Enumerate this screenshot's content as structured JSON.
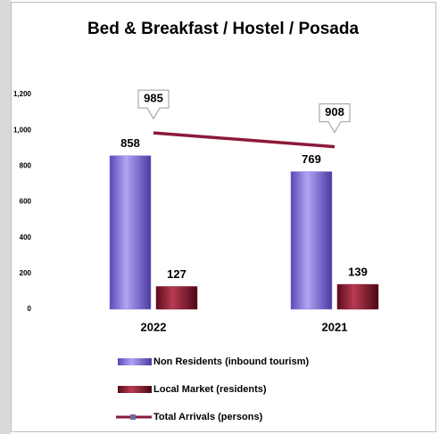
{
  "chart_data": {
    "type": "bar",
    "title": "Bed & Breakfast / Hostel / Posada",
    "categories": [
      "2022",
      "2021"
    ],
    "series": [
      {
        "name": "Non Residents (inbound tourism)",
        "color": "#8a78e0",
        "values": [
          858,
          769
        ]
      },
      {
        "name": "Local Market (residents)",
        "color": "#8b1a2e",
        "values": [
          127,
          139
        ]
      },
      {
        "name": "Total Arrivals (persons)",
        "type": "line",
        "color": "#8b1a3a",
        "values": [
          985,
          908
        ]
      }
    ],
    "ylim": [
      0,
      1200
    ],
    "yticks": [
      0,
      200,
      400,
      600,
      800,
      {
        "value": 1000,
        "label": "1,000"
      },
      {
        "value": 1200,
        "label": "1,200"
      }
    ],
    "grid": false,
    "legend": "bottom"
  }
}
